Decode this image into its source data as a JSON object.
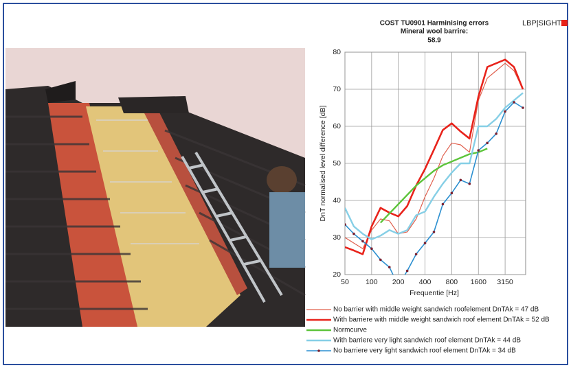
{
  "chart_data": {
    "type": "line",
    "title": "COST TU0901 Harminising errors",
    "subtitle": "Mineral wool barrire:",
    "annotation": "58.9",
    "brand": "LBP|SIGHT",
    "x_label": "Frequentie [Hz]",
    "y_label": "DnT normalised level difference [dB]",
    "categories": [
      "50",
      null,
      null,
      "100",
      null,
      null,
      "200",
      null,
      null,
      "400",
      null,
      null,
      "800",
      null,
      null,
      "1600",
      null,
      null,
      "3150",
      null,
      null
    ],
    "ylim": [
      20,
      80
    ],
    "yticks": [
      20,
      30,
      40,
      50,
      60,
      70,
      80
    ],
    "grid": true,
    "series": [
      {
        "name": "No barrier with middle weight sandwich roofelement DnTAk = 47 dB",
        "color": "#e0604e",
        "line_width": 1.2,
        "markers": false,
        "values": [
          30,
          28.5,
          27,
          32,
          35,
          34.5,
          31,
          31.5,
          35,
          41,
          46,
          52,
          55.5,
          55,
          53,
          67,
          73,
          75,
          77,
          75,
          70
        ]
      },
      {
        "name": "With barriere with middle weight sandwich roof element DnTAk = 52 dB",
        "color": "#e8231b",
        "line_width": 2.6,
        "markers": false,
        "values": [
          27.4,
          26.5,
          25.5,
          33,
          38,
          36.7,
          35.7,
          38.5,
          44,
          48.5,
          53.7,
          59,
          60.8,
          58.6,
          56.7,
          68,
          76,
          77,
          78,
          76,
          70
        ]
      },
      {
        "name": "Normcurve",
        "color": "#5cc43a",
        "line_width": 2.4,
        "markers": false,
        "values": [
          null,
          null,
          null,
          null,
          34,
          36.5,
          39,
          41.5,
          44,
          46,
          48,
          49.5,
          50.5,
          51.5,
          52.5,
          53,
          54,
          null,
          null,
          null,
          null
        ]
      },
      {
        "name": "With barriere very light sandwich roof element DnTAk = 44 dB",
        "color": "#86cfe6",
        "line_width": 2.4,
        "markers": false,
        "values": [
          38,
          33,
          31,
          29.5,
          30.5,
          32,
          31,
          32,
          36,
          37,
          41,
          44.5,
          47.5,
          50,
          50,
          60,
          60,
          62,
          65,
          67,
          69
        ]
      },
      {
        "name": "No barriere very light sandwich roof element DnTAk = 34 dB",
        "color": "#2b8fd0",
        "line_width": 1.6,
        "markers": true,
        "values": [
          33.5,
          31,
          29,
          27,
          24,
          22,
          17,
          21,
          25.5,
          28.5,
          31.5,
          39,
          42,
          45.5,
          44.5,
          53.5,
          55.5,
          58,
          64,
          66.5,
          65
        ]
      }
    ]
  }
}
